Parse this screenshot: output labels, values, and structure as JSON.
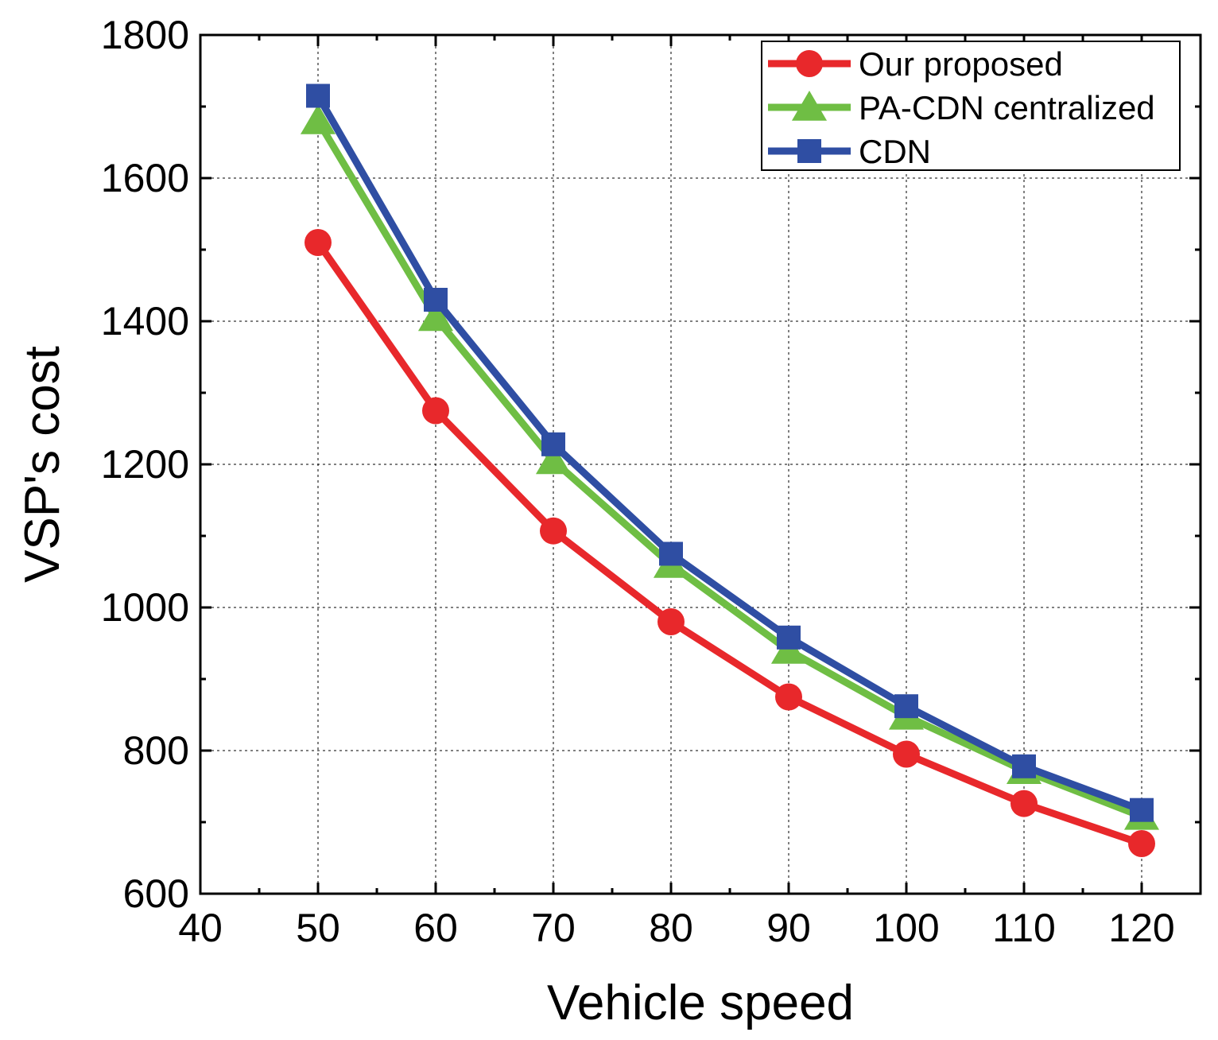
{
  "chart_data": {
    "type": "line",
    "title": "",
    "xlabel": "Vehicle speed",
    "ylabel": "VSP's cost",
    "xlim": [
      40,
      125
    ],
    "ylim": [
      600,
      1800
    ],
    "xticks": [
      40,
      50,
      60,
      70,
      80,
      90,
      100,
      110,
      120
    ],
    "yticks": [
      600,
      800,
      1000,
      1200,
      1400,
      1600,
      1800
    ],
    "xtick_labels": [
      "40",
      "50",
      "60",
      "70",
      "80",
      "90",
      "100",
      "110",
      "120"
    ],
    "ytick_labels": [
      "600",
      "800",
      "1000",
      "1200",
      "1400",
      "1600",
      "1800"
    ],
    "grid": true,
    "legend_position": "top-right",
    "x": [
      50,
      60,
      70,
      80,
      90,
      100,
      110,
      120
    ],
    "series": [
      {
        "name": "Our proposed",
        "color": "#e8282b",
        "marker": "circle",
        "values": [
          1510,
          1275,
          1107,
          980,
          875,
          795,
          726,
          670
        ]
      },
      {
        "name": "PA-CDN centralized",
        "color": "#6fbe44",
        "marker": "triangle",
        "values": [
          1680,
          1405,
          1205,
          1060,
          940,
          848,
          772,
          708
        ]
      },
      {
        "name": "CDN",
        "color": "#2f4ea3",
        "marker": "square",
        "values": [
          1715,
          1430,
          1228,
          1075,
          958,
          862,
          778,
          717
        ]
      }
    ]
  }
}
